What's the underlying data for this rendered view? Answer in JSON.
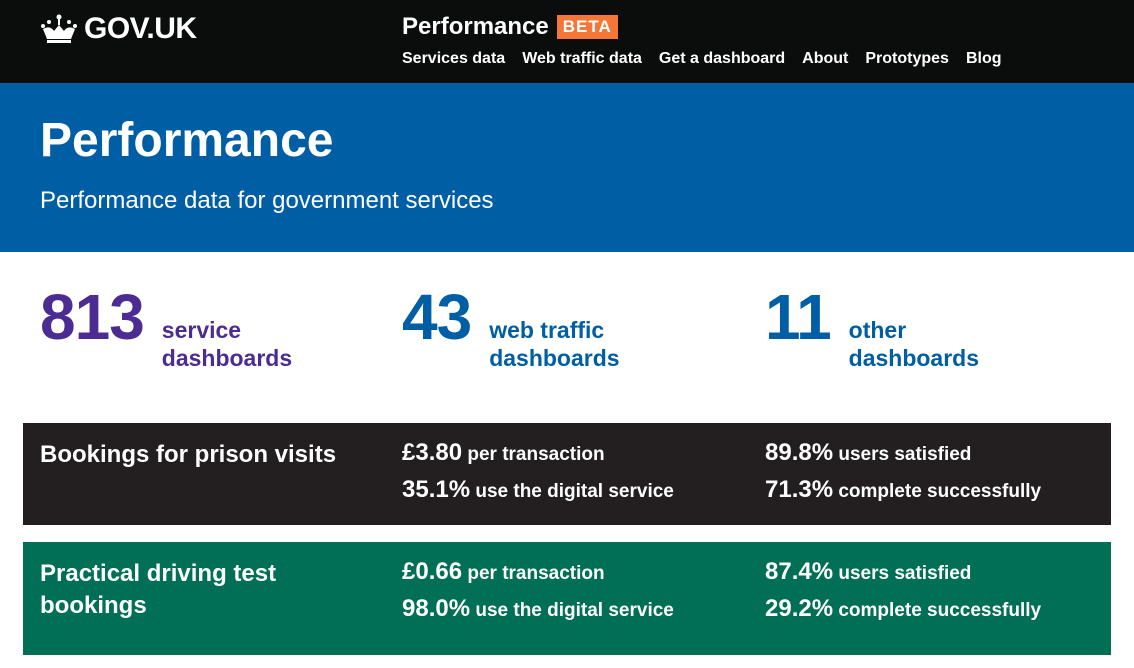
{
  "header": {
    "logo": "GOV.UK",
    "product": "Performance",
    "badge": "BETA",
    "nav": [
      "Services data",
      "Web traffic data",
      "Get a dashboard",
      "About",
      "Prototypes",
      "Blog"
    ]
  },
  "hero": {
    "title": "Performance",
    "subtitle": "Performance data for government services"
  },
  "stats": [
    {
      "value": "813",
      "label": "service dashboards",
      "color": "#4c2c92"
    },
    {
      "value": "43",
      "label": "web traffic dashboards",
      "color": "#005ea5"
    },
    {
      "value": "11",
      "label": "other dashboards",
      "color": "#005ea5"
    }
  ],
  "services": [
    {
      "name": "Bookings for prison visits",
      "bg": "#231f20",
      "cost": "£3.80",
      "cost_label": "per transaction",
      "digital": "35.1%",
      "digital_label": "use the digital service",
      "satisfied": "89.8%",
      "satisfied_label": "users satisfied",
      "complete": "71.3%",
      "complete_label": "complete successfully"
    },
    {
      "name": "Practical driving test bookings",
      "bg": "#006f55",
      "cost": "£0.66",
      "cost_label": "per transaction",
      "digital": "98.0%",
      "digital_label": "use the digital service",
      "satisfied": "87.4%",
      "satisfied_label": "users satisfied",
      "complete": "29.2%",
      "complete_label": "complete successfully"
    }
  ]
}
